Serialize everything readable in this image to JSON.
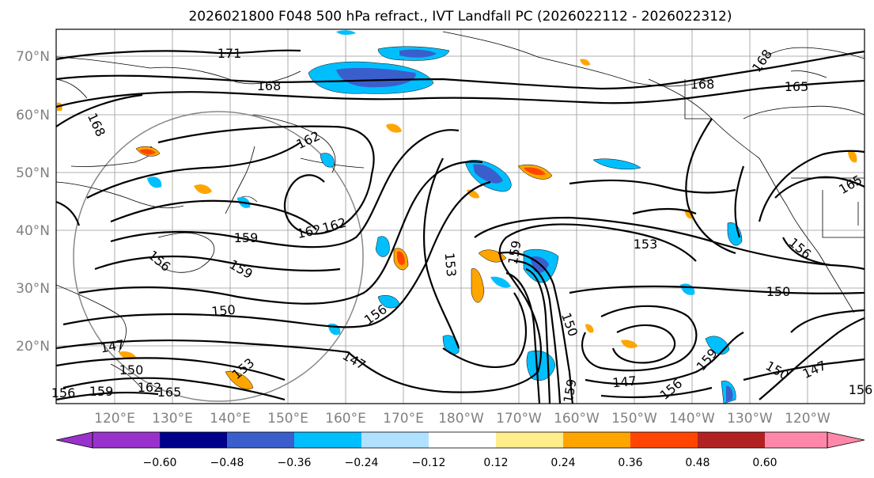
{
  "title": "2026021800 F048 500 hPa refract., IVT Landfall PC (2026022112 - 2026022312)",
  "lat_labels": [
    "70°N",
    "60°N",
    "50°N",
    "40°N",
    "30°N",
    "20°N"
  ],
  "lon_labels": [
    "120°E",
    "130°E",
    "140°E",
    "150°E",
    "160°E",
    "170°E",
    "180°W",
    "170°W",
    "160°W",
    "150°W",
    "140°W",
    "130°W",
    "120°W"
  ],
  "colorbar": {
    "ticks": [
      "−0.60",
      "−0.48",
      "−0.36",
      "−0.24",
      "−0.12",
      "0.12",
      "0.24",
      "0.36",
      "0.48",
      "0.60"
    ],
    "colors": [
      "#9932cc",
      "#00008b",
      "#3a5fcd",
      "#00bfff",
      "#b0e2ff",
      "#ffffff",
      "#ffec8b",
      "#ffa500",
      "#ff4500",
      "#b22222",
      "#ff88aa"
    ]
  },
  "contour_labels": [
    "171",
    "168",
    "168",
    "168",
    "168",
    "165",
    "162",
    "162",
    "162",
    "159",
    "159",
    "153",
    "153",
    "159",
    "156",
    "156",
    "150",
    "150",
    "150",
    "150",
    "147",
    "147",
    "147",
    "147",
    "150",
    "153",
    "156",
    "159",
    "159",
    "165",
    "165",
    "162",
    "156",
    "159",
    "156",
    "156"
  ],
  "shading_colors": {
    "neg_strong": "#3a5fcd",
    "neg_mid": "#00bfff",
    "pos_mid": "#ffa500",
    "pos_strong": "#ff4500",
    "pos_weak": "#ffec8b"
  }
}
